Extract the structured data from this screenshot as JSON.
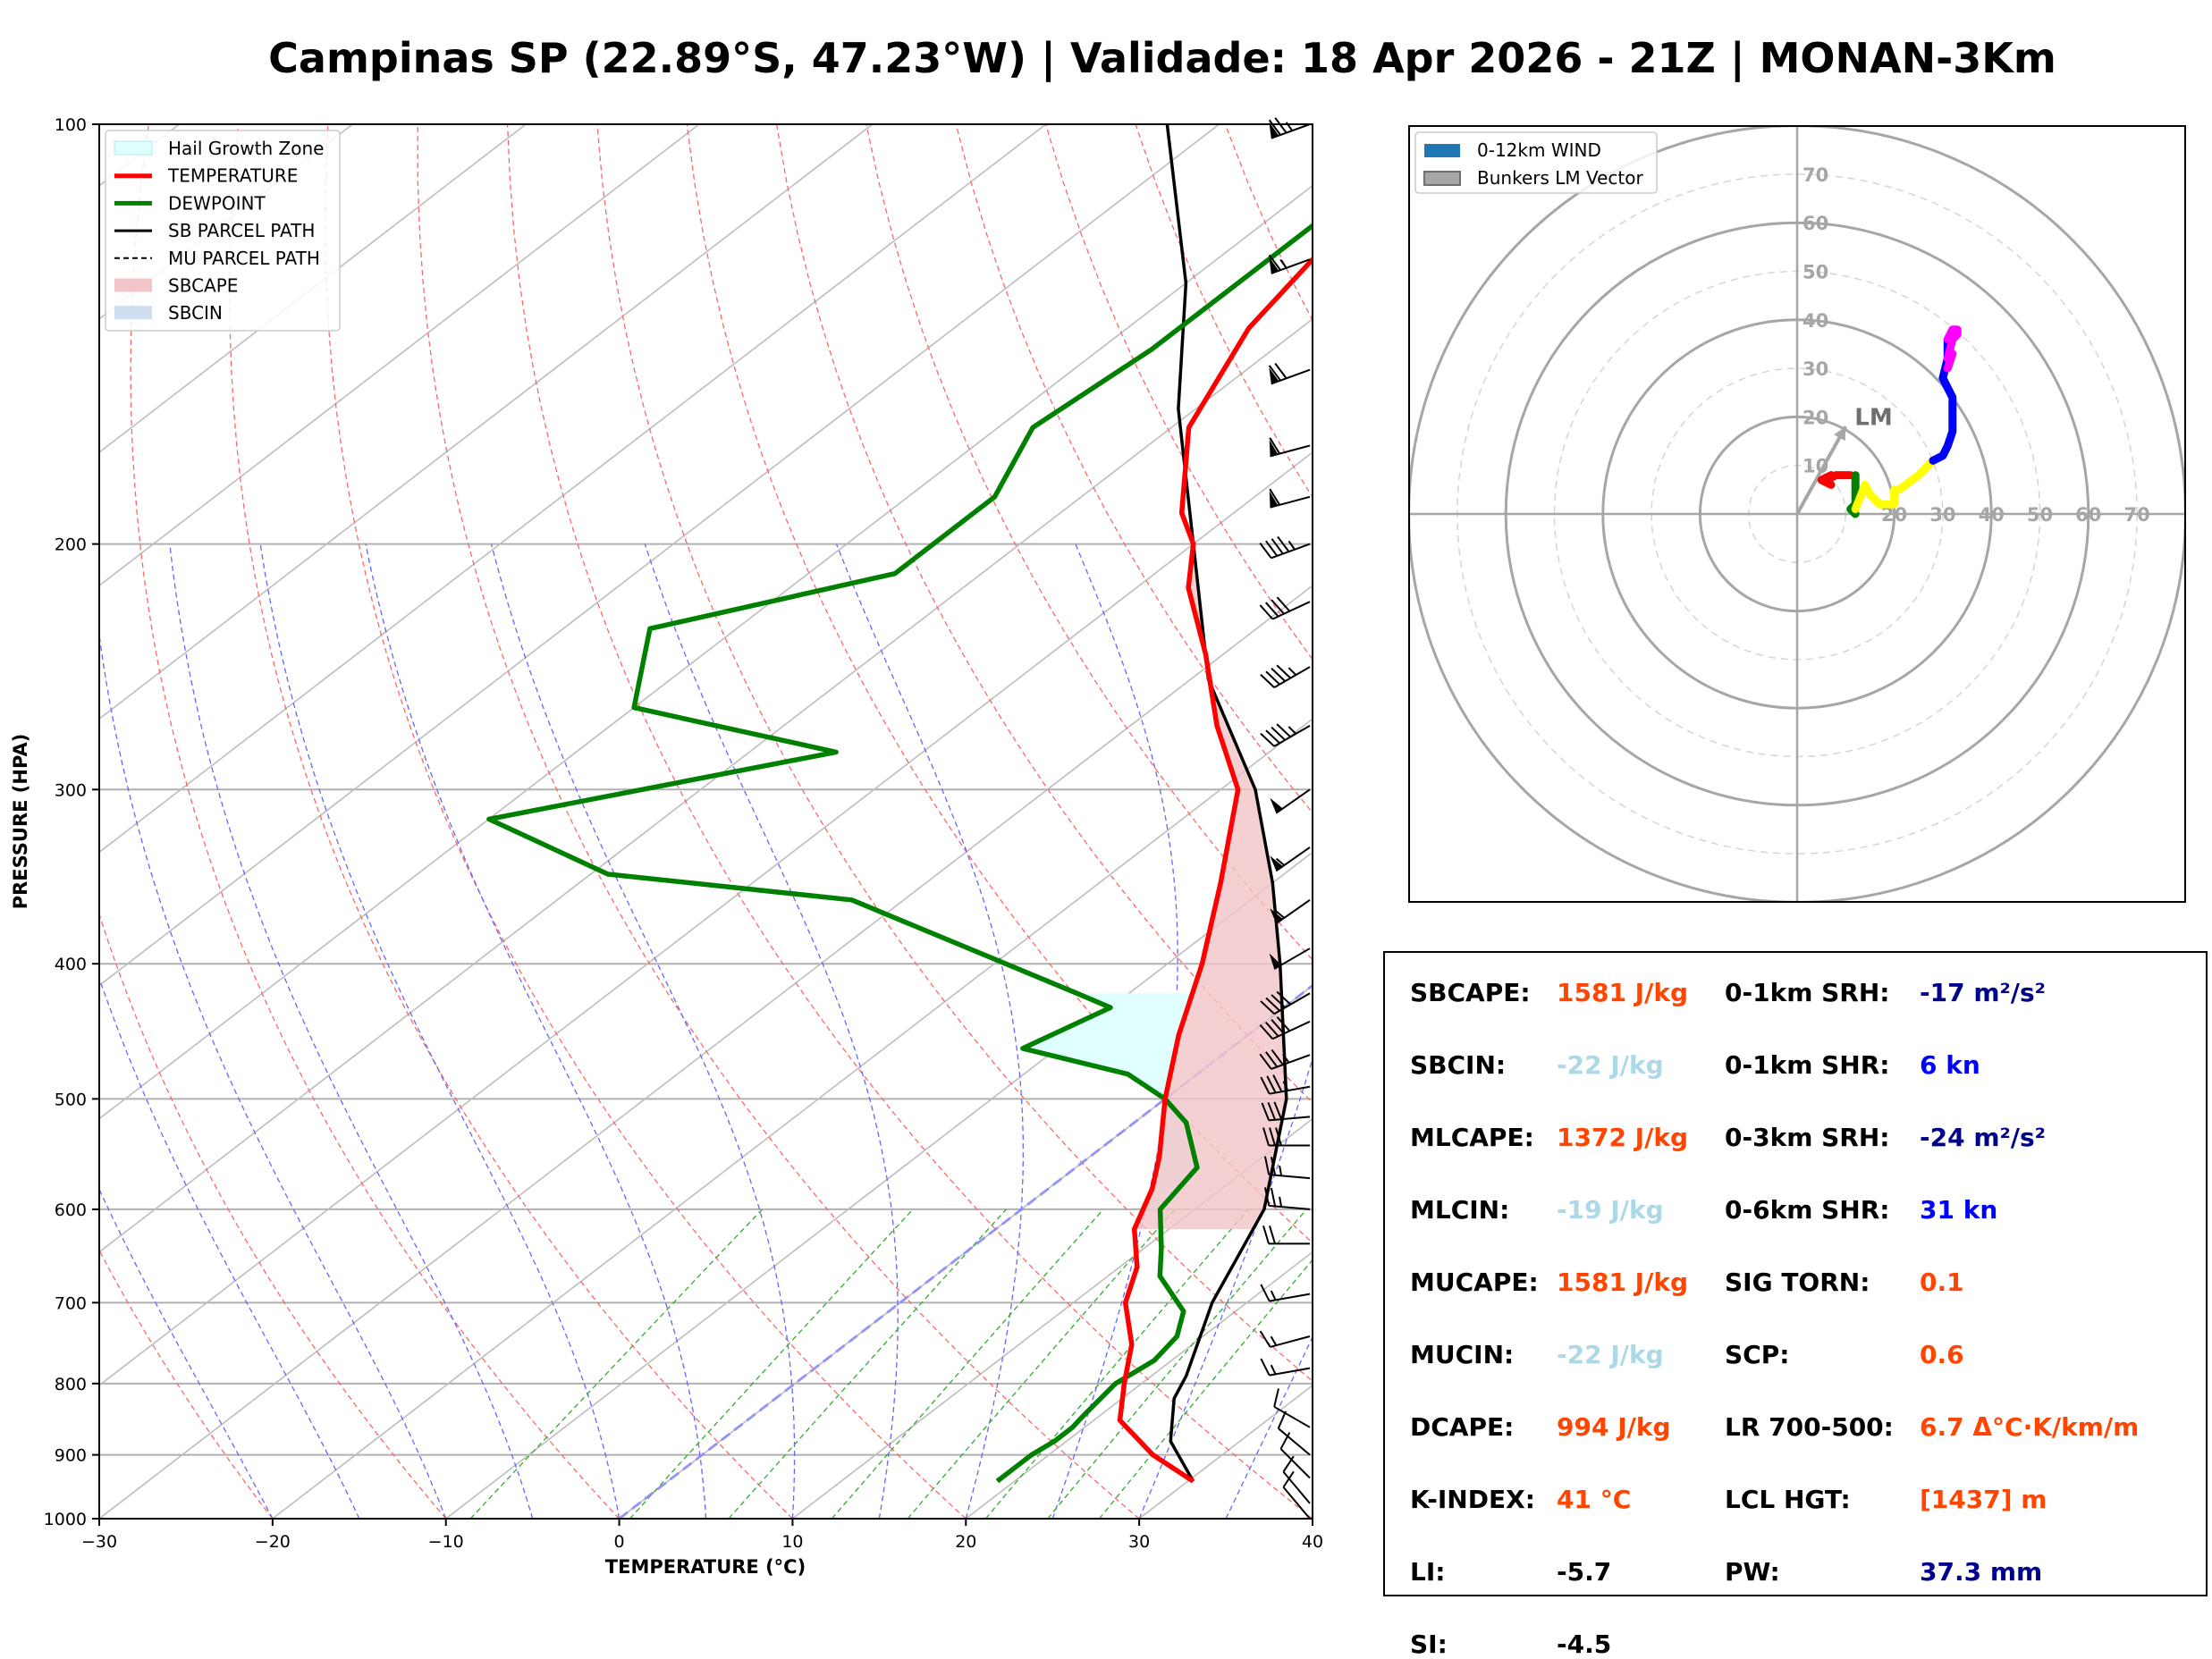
{
  "title": "Campinas SP (22.89°S, 47.23°W) | Validade: 18 Apr 2026 - 21Z | MONAN-3Km",
  "chart_data": [
    {
      "type": "line",
      "name": "skew-t log-p diagram",
      "xlabel": "TEMPERATURE (°C)",
      "ylabel": "PRESSURE (HPA)",
      "xlim": [
        -30,
        40
      ],
      "ylim": [
        1000,
        100
      ],
      "x_ticks": [
        "−30",
        "−20",
        "−10",
        "0",
        "10",
        "20",
        "30",
        "40"
      ],
      "y_ticks": [
        "100",
        "200",
        "300",
        "400",
        "500",
        "600",
        "700",
        "800",
        "900",
        "1000"
      ],
      "legend": {
        "placement": "top-left",
        "entries": [
          "Hail Growth Zone",
          "TEMPERATURE",
          "DEWPOINT",
          "SB PARCEL PATH",
          "MU PARCEL PATH",
          "SBCAPE",
          "SBCIN"
        ]
      },
      "series": [
        {
          "name": "TEMPERATURE",
          "color": "#ff0000",
          "points": [
            [
              940,
              30.3
            ],
            [
              900,
              26
            ],
            [
              850,
              21.5
            ],
            [
              800,
              19
            ],
            [
              750,
              16.5
            ],
            [
              700,
              13
            ],
            [
              660,
              11
            ],
            [
              620,
              8
            ],
            [
              580,
              6
            ],
            [
              550,
              4
            ],
            [
              500,
              0
            ],
            [
              450,
              -4
            ],
            [
              400,
              -8
            ],
            [
              350,
              -13
            ],
            [
              300,
              -19
            ],
            [
              270,
              -25
            ],
            [
              240,
              -31
            ],
            [
              215,
              -37
            ],
            [
              200,
              -40
            ],
            [
              190,
              -43
            ],
            [
              165,
              -49
            ],
            [
              140,
              -53
            ],
            [
              120,
              -55
            ],
            [
              112,
              -55
            ],
            [
              100,
              -57
            ]
          ]
        },
        {
          "name": "DEWPOINT",
          "color": "#008000",
          "points": [
            [
              940,
              19
            ],
            [
              920,
              19
            ],
            [
              900,
              19
            ],
            [
              880,
              19.3
            ],
            [
              860,
              19.3
            ],
            [
              840,
              19
            ],
            [
              800,
              18.5
            ],
            [
              770,
              19
            ],
            [
              740,
              18.5
            ],
            [
              710,
              17
            ],
            [
              670,
              13
            ],
            [
              640,
              11
            ],
            [
              600,
              8
            ],
            [
              560,
              7
            ],
            [
              520,
              3
            ],
            [
              500,
              0
            ],
            [
              480,
              -4
            ],
            [
              460,
              -12
            ],
            [
              430,
              -10
            ],
            [
              420,
              -13
            ],
            [
              360,
              -33
            ],
            [
              345,
              -49
            ],
            [
              315,
              -60
            ],
            [
              282,
              -45
            ],
            [
              262,
              -60
            ],
            [
              230,
              -65
            ],
            [
              210,
              -55
            ],
            [
              185,
              -55
            ],
            [
              165,
              -58
            ],
            [
              145,
              -57
            ],
            [
              130,
              -57
            ],
            [
              117,
              -57
            ],
            [
              100,
              -55
            ]
          ]
        },
        {
          "name": "SB PARCEL PATH",
          "color": "#000000",
          "points": [
            [
              940,
              30.3
            ],
            [
              880,
              26
            ],
            [
              820,
              23
            ],
            [
              790,
              22
            ],
            [
              700,
              18
            ],
            [
              600,
              14
            ],
            [
              500,
              7
            ],
            [
              400,
              -3.5
            ],
            [
              350,
              -10
            ],
            [
              300,
              -18
            ],
            [
              250,
              -29
            ],
            [
              200,
              -40
            ],
            [
              160,
              -51
            ],
            [
              130,
              -60
            ],
            [
              100,
              -73
            ]
          ]
        }
      ],
      "freezing_line": {
        "temperature_c": 0
      },
      "hail_growth_zone": {
        "top_hpa": 420,
        "bottom_hpa": 600
      },
      "sbcape_region": {
        "from_hpa": 620,
        "to_hpa": 200
      },
      "wind_barbs": [
        {
          "pressure": 100,
          "direction": 250,
          "speed_kt": 75
        },
        {
          "pressure": 125,
          "direction": 250,
          "speed_kt": 65
        },
        {
          "pressure": 150,
          "direction": 250,
          "speed_kt": 70
        },
        {
          "pressure": 170,
          "direction": 255,
          "speed_kt": 60
        },
        {
          "pressure": 185,
          "direction": 255,
          "speed_kt": 60
        },
        {
          "pressure": 200,
          "direction": 250,
          "speed_kt": 45
        },
        {
          "pressure": 220,
          "direction": 245,
          "speed_kt": 40
        },
        {
          "pressure": 245,
          "direction": 240,
          "speed_kt": 45
        },
        {
          "pressure": 270,
          "direction": 240,
          "speed_kt": 45
        },
        {
          "pressure": 300,
          "direction": 235,
          "speed_kt": 50
        },
        {
          "pressure": 330,
          "direction": 235,
          "speed_kt": 55
        },
        {
          "pressure": 360,
          "direction": 235,
          "speed_kt": 55
        },
        {
          "pressure": 390,
          "direction": 240,
          "speed_kt": 50
        },
        {
          "pressure": 420,
          "direction": 240,
          "speed_kt": 40
        },
        {
          "pressure": 440,
          "direction": 245,
          "speed_kt": 40
        },
        {
          "pressure": 465,
          "direction": 250,
          "speed_kt": 35
        },
        {
          "pressure": 490,
          "direction": 260,
          "speed_kt": 35
        },
        {
          "pressure": 515,
          "direction": 265,
          "speed_kt": 30
        },
        {
          "pressure": 540,
          "direction": 270,
          "speed_kt": 30
        },
        {
          "pressure": 570,
          "direction": 275,
          "speed_kt": 25
        },
        {
          "pressure": 600,
          "direction": 275,
          "speed_kt": 25
        },
        {
          "pressure": 635,
          "direction": 270,
          "speed_kt": 20
        },
        {
          "pressure": 690,
          "direction": 260,
          "speed_kt": 15
        },
        {
          "pressure": 740,
          "direction": 255,
          "speed_kt": 15
        },
        {
          "pressure": 780,
          "direction": 260,
          "speed_kt": 15
        },
        {
          "pressure": 860,
          "direction": 300,
          "speed_kt": 10
        },
        {
          "pressure": 900,
          "direction": 310,
          "speed_kt": 10
        },
        {
          "pressure": 935,
          "direction": 315,
          "speed_kt": 10
        },
        {
          "pressure": 975,
          "direction": 320,
          "speed_kt": 10
        },
        {
          "pressure": 1000,
          "direction": 320,
          "speed_kt": 10
        }
      ]
    },
    {
      "type": "line",
      "name": "hodograph",
      "ring_labels": [
        "10",
        "20",
        "30",
        "40",
        "50",
        "60",
        "70"
      ],
      "legend": {
        "placement": "top-left",
        "entries": [
          "0-12km WIND",
          "Bunkers LM Vector"
        ]
      },
      "lm_label": "LM",
      "lm_vector": {
        "u": 10,
        "v": 18
      },
      "segments": [
        {
          "color": "#ff0000",
          "points": [
            [
              11,
              8
            ],
            [
              8,
              8
            ],
            [
              6,
              7
            ],
            [
              7,
              8
            ],
            [
              5,
              7
            ],
            [
              7,
              6
            ]
          ]
        },
        {
          "color": "#008000",
          "points": [
            [
              12,
              8
            ],
            [
              12,
              5
            ],
            [
              12,
              2
            ],
            [
              11,
              1
            ],
            [
              12,
              0
            ],
            [
              11,
              1
            ],
            [
              12,
              1
            ]
          ]
        },
        {
          "color": "#ffff00",
          "points": [
            [
              12,
              1
            ],
            [
              14,
              6
            ],
            [
              15,
              4
            ],
            [
              17,
              2
            ],
            [
              20,
              2
            ],
            [
              20,
              5
            ],
            [
              21,
              5
            ],
            [
              25,
              8
            ],
            [
              28,
              11
            ]
          ]
        },
        {
          "color": "#0000ff",
          "points": [
            [
              28,
              11
            ],
            [
              30,
              12
            ],
            [
              31,
              14
            ],
            [
              32,
              17
            ],
            [
              32,
              20
            ],
            [
              32,
              22
            ],
            [
              32,
              24
            ],
            [
              31,
              26
            ],
            [
              30,
              28
            ],
            [
              31,
              32
            ],
            [
              31,
              36
            ]
          ]
        },
        {
          "color": "#ff00ff",
          "points": [
            [
              31,
              36
            ],
            [
              32,
              38
            ],
            [
              33,
              38
            ],
            [
              33,
              37
            ],
            [
              32,
              36
            ],
            [
              31,
              32
            ],
            [
              32,
              33
            ],
            [
              31,
              30
            ]
          ]
        }
      ]
    }
  ],
  "params": {
    "left": [
      {
        "label": "SBCAPE:",
        "value": "1581 J/kg",
        "color": "#ff4500"
      },
      {
        "label": "SBCIN:",
        "value": "-22 J/kg",
        "color": "#add8e6"
      },
      {
        "label": "MLCAPE:",
        "value": "1372 J/kg",
        "color": "#ff4500"
      },
      {
        "label": "MLCIN:",
        "value": "-19 J/kg",
        "color": "#add8e6"
      },
      {
        "label": "MUCAPE:",
        "value": "1581 J/kg",
        "color": "#ff4500"
      },
      {
        "label": "MUCIN:",
        "value": "-22 J/kg",
        "color": "#add8e6"
      },
      {
        "label": "DCAPE:",
        "value": "994 J/kg",
        "color": "#ff4500"
      },
      {
        "label": "K-INDEX:",
        "value": "41 °C",
        "color": "#ff4500"
      },
      {
        "label": "LI:",
        "value": "-5.7",
        "color": "#000000"
      },
      {
        "label": "SI:",
        "value": "-4.5",
        "color": "#000000"
      }
    ],
    "right": [
      {
        "label": "0-1km SRH:",
        "value": "-17 m²/s²",
        "color": "#00008b"
      },
      {
        "label": "0-1km SHR:",
        "value": "6 kn",
        "color": "#0000ff"
      },
      {
        "label": "0-3km SRH:",
        "value": "-24 m²/s²",
        "color": "#00008b"
      },
      {
        "label": "0-6km SHR:",
        "value": "31 kn",
        "color": "#0000ff"
      },
      {
        "label": "SIG TORN:",
        "value": "0.1",
        "color": "#ff4500"
      },
      {
        "label": "SCP:",
        "value": "0.6",
        "color": "#ff4500"
      },
      {
        "label": "LR 700-500:",
        "value": "6.7 Δ°C·K/km/m",
        "color": "#ff4500"
      },
      {
        "label": "LCL HGT:",
        "value": "[1437] m",
        "color": "#ff4500"
      },
      {
        "label": "PW:",
        "value": "37.3 mm",
        "color": "#00008b"
      }
    ]
  }
}
